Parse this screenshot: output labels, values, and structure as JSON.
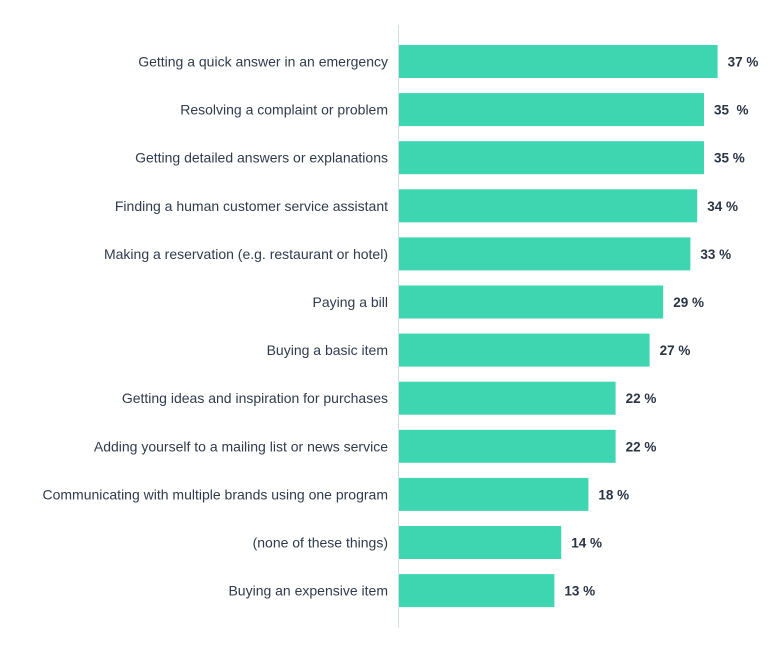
{
  "chart_data": {
    "type": "bar",
    "orientation": "horizontal",
    "categories": [
      "Getting a quick answer in an emergency",
      "Resolving a complaint or problem",
      "Getting detailed answers or explanations",
      "Finding a human customer service assistant",
      "Making a reservation (e.g. restaurant or hotel)",
      "Paying a bill",
      "Buying a basic item",
      "Getting ideas and inspiration for purchases",
      "Adding yourself to a mailing list or news service",
      "Communicating with multiple brands using one program",
      "(none of these things)",
      "Buying an expensive item"
    ],
    "values": [
      37,
      35,
      35,
      34,
      33,
      29,
      27,
      22,
      22,
      18,
      14,
      13
    ],
    "data_labels": [
      "37 %",
      "35  %",
      "35 %",
      "34 %",
      "33 %",
      "29 %",
      "27 %",
      "22 %",
      "22 %",
      "18 %",
      "14 %",
      "13 %"
    ],
    "unit": "%",
    "title": "",
    "xlabel": "",
    "ylabel": "",
    "grid": false,
    "colors": {
      "bar": "#3ed6b0",
      "axis": "#d5dde8",
      "text": "#2f3b4c"
    }
  }
}
